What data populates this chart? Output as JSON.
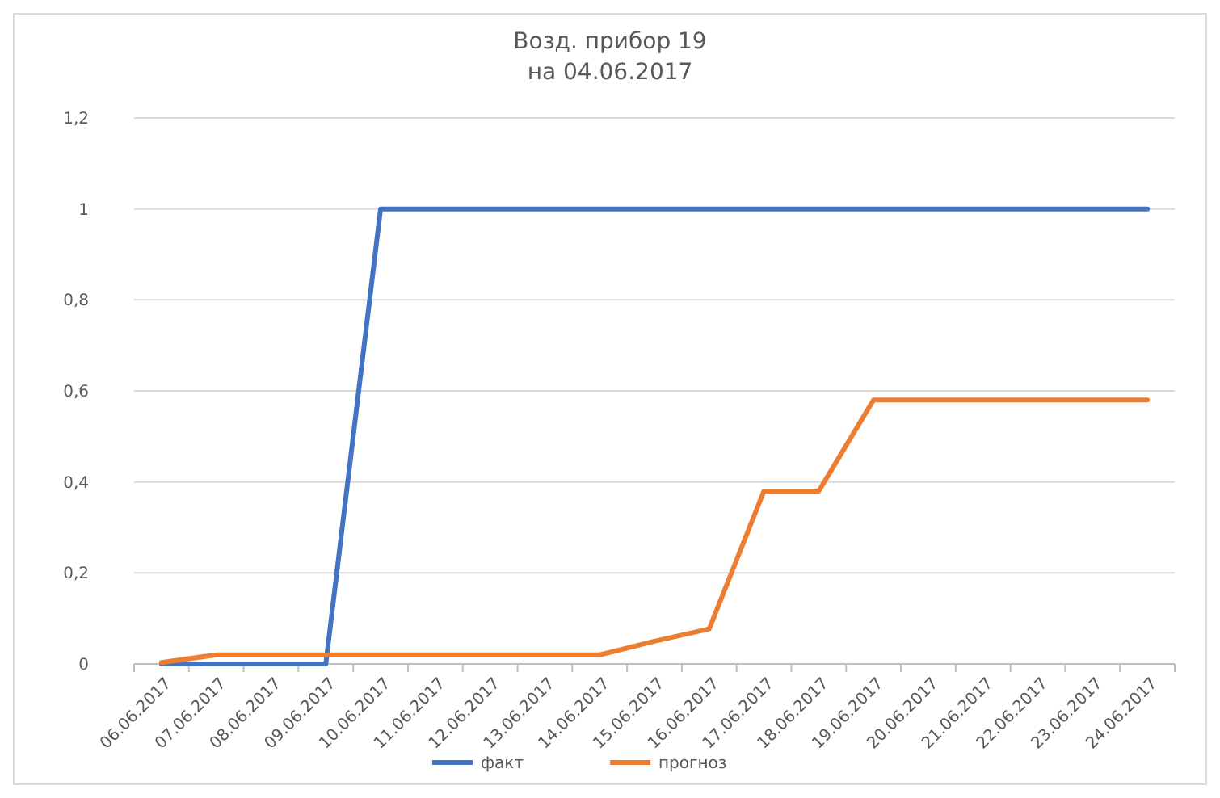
{
  "chart_data": {
    "type": "line",
    "title": "Возд. прибор 19\nна 04.06.2017",
    "categories": [
      "06.06.2017",
      "07.06.2017",
      "08.06.2017",
      "09.06.2017",
      "10.06.2017",
      "11.06.2017",
      "12.06.2017",
      "13.06.2017",
      "14.06.2017",
      "15.06.2017",
      "16.06.2017",
      "17.06.2017",
      "18.06.2017",
      "19.06.2017",
      "20.06.2017",
      "21.06.2017",
      "22.06.2017",
      "23.06.2017",
      "24.06.2017"
    ],
    "series": [
      {
        "name": "факт",
        "color": "#4472c4",
        "values": [
          0,
          0,
          0,
          0,
          1,
          1,
          1,
          1,
          1,
          1,
          1,
          1,
          1,
          1,
          1,
          1,
          1,
          1,
          1
        ]
      },
      {
        "name": "прогноз",
        "color": "#ed7d31",
        "values": [
          0.003,
          0.02,
          0.02,
          0.02,
          0.02,
          0.02,
          0.02,
          0.02,
          0.02,
          0.05,
          0.077,
          0.38,
          0.38,
          0.58,
          0.58,
          0.58,
          0.58,
          0.58,
          0.58
        ]
      }
    ],
    "ylim": [
      0,
      1.2
    ],
    "yticks": [
      {
        "value": 0,
        "label": "0"
      },
      {
        "value": 0.2,
        "label": "0,2"
      },
      {
        "value": 0.4,
        "label": "0,4"
      },
      {
        "value": 0.6,
        "label": "0,6"
      },
      {
        "value": 0.8,
        "label": "0,8"
      },
      {
        "value": 1,
        "label": "1"
      },
      {
        "value": 1.2,
        "label": "1,2"
      }
    ],
    "grid": "y",
    "legend": "bottom",
    "marker": "none",
    "line_style": "solid"
  }
}
